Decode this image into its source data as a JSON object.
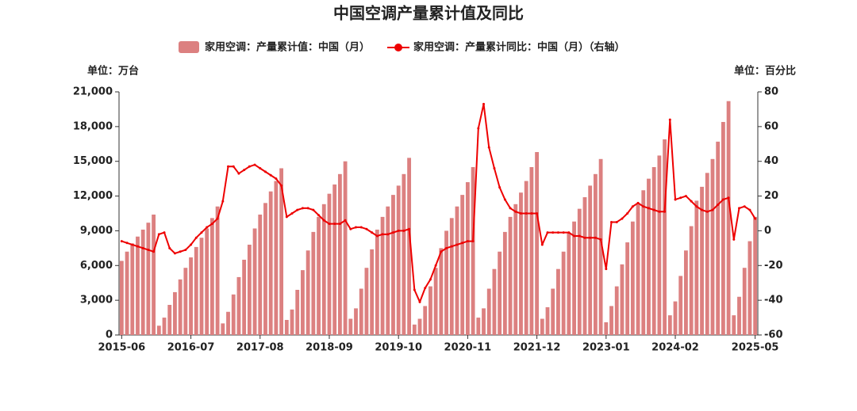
{
  "chart_data": {
    "type": "bar-line",
    "title": "中国空调产量累计值及同比",
    "y_unit": "单位：万台",
    "y2_unit": "单位：百分比",
    "categories": [
      "2015-06",
      null,
      null,
      null,
      null,
      null,
      null,
      null,
      null,
      null,
      null,
      null,
      null,
      "2016-07",
      null,
      null,
      null,
      null,
      null,
      null,
      null,
      null,
      null,
      null,
      null,
      null,
      "2017-08",
      null,
      null,
      null,
      null,
      null,
      null,
      null,
      null,
      null,
      null,
      null,
      null,
      "2018-09",
      null,
      null,
      null,
      null,
      null,
      null,
      null,
      null,
      null,
      null,
      null,
      null,
      "2019-10",
      null,
      null,
      null,
      null,
      null,
      null,
      null,
      null,
      null,
      null,
      null,
      null,
      "2020-11",
      null,
      null,
      null,
      null,
      null,
      null,
      null,
      null,
      null,
      null,
      null,
      null,
      "2021-12",
      null,
      null,
      null,
      null,
      null,
      null,
      null,
      null,
      null,
      null,
      null,
      null,
      "2023-01",
      null,
      null,
      null,
      null,
      null,
      null,
      null,
      null,
      null,
      null,
      null,
      null,
      "2024-02",
      null,
      null,
      null,
      null,
      null,
      null,
      null,
      null,
      null,
      null,
      null,
      null,
      null,
      null,
      "2025-05"
    ],
    "series": [
      {
        "name": "家用空调：产量累计值：中国（月）",
        "color": "#dc8080",
        "kind": "bar",
        "values": [
          6400,
          7200,
          7900,
          8500,
          9100,
          9700,
          10400,
          800,
          1500,
          2600,
          3700,
          4800,
          5800,
          6700,
          7600,
          8400,
          9200,
          10100,
          11100,
          1000,
          2000,
          3500,
          5000,
          6500,
          7800,
          9200,
          10400,
          11400,
          12400,
          13300,
          14400,
          1300,
          2200,
          3900,
          5600,
          7300,
          8900,
          10200,
          11300,
          12200,
          13000,
          13900,
          15000,
          1400,
          2300,
          4000,
          5800,
          7400,
          9100,
          10200,
          11100,
          12100,
          12900,
          13900,
          15300,
          900,
          1400,
          2500,
          4200,
          5800,
          7500,
          9000,
          10100,
          11100,
          12100,
          13200,
          14500,
          1500,
          2300,
          4000,
          5700,
          7200,
          8900,
          10200,
          11300,
          12300,
          13300,
          14500,
          15800,
          1400,
          2400,
          4000,
          5700,
          7200,
          8800,
          9800,
          10900,
          11900,
          12900,
          13900,
          15200,
          1100,
          2500,
          4200,
          6100,
          8000,
          9800,
          11300,
          12500,
          13500,
          14500,
          15500,
          16900,
          1700,
          2900,
          5100,
          7300,
          9400,
          11600,
          12800,
          14000,
          15200,
          16700,
          18400,
          20200,
          1700,
          3300,
          5800,
          8100,
          10200
        ]
      },
      {
        "name": "家用空调：产量累计同比：中国（月）（右轴）",
        "color": "#ee0000",
        "kind": "line",
        "axis": "y2",
        "values": [
          -6,
          -7,
          -8,
          -9,
          -10,
          -11,
          -12,
          -2,
          -1,
          -10,
          -13,
          -12,
          -11,
          -8,
          -4,
          -1,
          2,
          4,
          7,
          17,
          37,
          37,
          33,
          35,
          37,
          38,
          36,
          34,
          32,
          30,
          26,
          8,
          10,
          12,
          13,
          13,
          12,
          9,
          6,
          4,
          4,
          4,
          6,
          1,
          2,
          2,
          1,
          -1,
          -3,
          -2,
          -2,
          -1,
          0,
          0,
          1,
          -34,
          -41,
          -33,
          -28,
          -20,
          -12,
          -10,
          -9,
          -8,
          -7,
          -6,
          -6,
          59,
          73,
          48,
          36,
          25,
          18,
          13,
          11,
          10,
          10,
          10,
          10,
          -8,
          -1,
          -1,
          -1,
          -1,
          -1,
          -3,
          -3,
          -4,
          -4,
          -4,
          -5,
          -22,
          5,
          5,
          7,
          10,
          14,
          16,
          14,
          13,
          12,
          11,
          11,
          64,
          18,
          19,
          20,
          17,
          14,
          12,
          11,
          12,
          15,
          18,
          19,
          -5,
          13,
          14,
          12,
          7
        ]
      }
    ],
    "ylim": [
      0,
      21000
    ],
    "yticks": [
      0,
      {
        "value": 3000,
        "label": "3,000"
      },
      {
        "value": 6000,
        "label": "6,000"
      },
      {
        "value": 9000,
        "label": "9,000"
      },
      {
        "value": 12000,
        "label": "12,000"
      },
      {
        "value": 15000,
        "label": "15,000"
      },
      {
        "value": 18000,
        "label": "18,000"
      },
      {
        "value": 21000,
        "label": "21,000"
      }
    ],
    "y2lim": [
      -60,
      80
    ],
    "y2ticks": [
      -60,
      -40,
      -20,
      0,
      20,
      40,
      60,
      80
    ]
  }
}
